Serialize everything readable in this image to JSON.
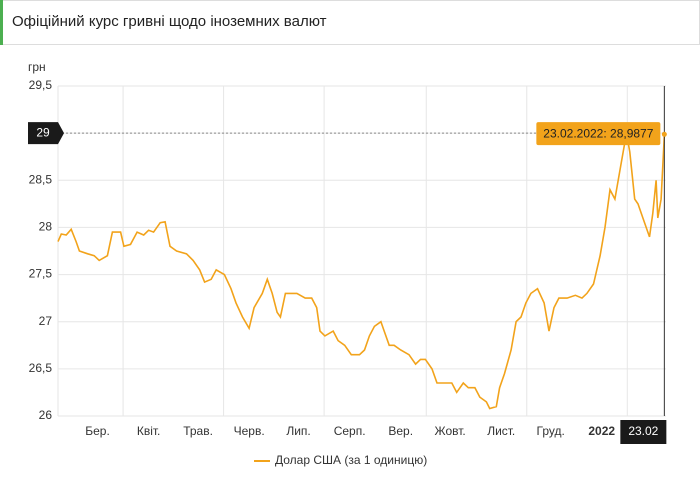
{
  "chart_data": {
    "type": "line",
    "title": "Офіційний курс гривні щодо іноземних валют",
    "y_label": "грн",
    "x": [
      "2021-02-20",
      "2021-02-22",
      "2021-02-25",
      "2021-02-28",
      "2021-03-03",
      "2021-03-05",
      "2021-03-10",
      "2021-03-14",
      "2021-03-17",
      "2021-03-22",
      "2021-03-25",
      "2021-03-30",
      "2021-04-01",
      "2021-04-05",
      "2021-04-09",
      "2021-04-13",
      "2021-04-16",
      "2021-04-19",
      "2021-04-23",
      "2021-04-26",
      "2021-04-29",
      "2021-05-03",
      "2021-05-09",
      "2021-05-13",
      "2021-05-17",
      "2021-05-20",
      "2021-05-24",
      "2021-05-27",
      "2021-06-01",
      "2021-06-05",
      "2021-06-08",
      "2021-06-12",
      "2021-06-16",
      "2021-06-19",
      "2021-06-24",
      "2021-06-27",
      "2021-06-30",
      "2021-07-03",
      "2021-07-05",
      "2021-07-08",
      "2021-07-11",
      "2021-07-15",
      "2021-07-20",
      "2021-07-24",
      "2021-07-27",
      "2021-07-29",
      "2021-08-01",
      "2021-08-06",
      "2021-08-09",
      "2021-08-13",
      "2021-08-17",
      "2021-08-22",
      "2021-08-25",
      "2021-08-28",
      "2021-08-31",
      "2021-09-04",
      "2021-09-06",
      "2021-09-09",
      "2021-09-12",
      "2021-09-16",
      "2021-09-21",
      "2021-09-25",
      "2021-09-28",
      "2021-10-01",
      "2021-10-05",
      "2021-10-08",
      "2021-10-12",
      "2021-10-17",
      "2021-10-20",
      "2021-10-24",
      "2021-10-27",
      "2021-10-31",
      "2021-11-03",
      "2021-11-07",
      "2021-11-09",
      "2021-11-13",
      "2021-11-15",
      "2021-11-18",
      "2021-11-22",
      "2021-11-25",
      "2021-11-28",
      "2021-12-01",
      "2021-12-04",
      "2021-12-08",
      "2021-12-12",
      "2021-12-15",
      "2021-12-18",
      "2021-12-21",
      "2021-12-26",
      "2021-12-31",
      "2022-01-04",
      "2022-01-07",
      "2022-01-11",
      "2022-01-15",
      "2022-01-18",
      "2022-01-21",
      "2022-01-24",
      "2022-01-28",
      "2022-01-31",
      "2022-02-02",
      "2022-02-05",
      "2022-02-07",
      "2022-02-10",
      "2022-02-14",
      "2022-02-16",
      "2022-02-18",
      "2022-02-19",
      "2022-02-21",
      "2022-02-23"
    ],
    "series": [
      {
        "name": "Долар США (за 1 одиницю)",
        "color": "#f2a31b",
        "values": [
          27.85,
          27.93,
          27.92,
          27.98,
          27.85,
          27.75,
          27.72,
          27.7,
          27.65,
          27.7,
          27.95,
          27.95,
          27.8,
          27.82,
          27.95,
          27.92,
          27.97,
          27.95,
          28.05,
          28.06,
          27.8,
          27.75,
          27.72,
          27.65,
          27.55,
          27.42,
          27.45,
          27.55,
          27.5,
          27.35,
          27.2,
          27.05,
          26.93,
          27.15,
          27.3,
          27.45,
          27.3,
          27.1,
          27.05,
          27.3,
          27.3,
          27.3,
          27.25,
          27.25,
          27.15,
          26.9,
          26.85,
          26.9,
          26.8,
          26.75,
          26.65,
          26.65,
          26.7,
          26.85,
          26.95,
          27.0,
          26.9,
          26.75,
          26.75,
          26.7,
          26.65,
          26.55,
          26.6,
          26.6,
          26.5,
          26.35,
          26.35,
          26.35,
          26.25,
          26.35,
          26.3,
          26.3,
          26.2,
          26.15,
          26.08,
          26.1,
          26.3,
          26.45,
          26.7,
          27.0,
          27.05,
          27.2,
          27.3,
          27.35,
          27.2,
          26.9,
          27.15,
          27.25,
          27.25,
          27.28,
          27.25,
          27.3,
          27.4,
          27.7,
          28.0,
          28.4,
          28.3,
          28.7,
          29.0,
          28.8,
          28.3,
          28.25,
          28.1,
          27.9,
          28.15,
          28.5,
          28.1,
          28.3,
          28.9877
        ]
      }
    ],
    "xlim": [
      "2021-02-20",
      "2022-02-24"
    ],
    "xticks": [
      {
        "value": "2021-03-16",
        "label": "Бер."
      },
      {
        "value": "2021-04-16",
        "label": "Квіт."
      },
      {
        "value": "2021-05-16",
        "label": "Трав."
      },
      {
        "value": "2021-06-16",
        "label": "Черв."
      },
      {
        "value": "2021-07-16",
        "label": "Лип."
      },
      {
        "value": "2021-08-16",
        "label": "Серп."
      },
      {
        "value": "2021-09-16",
        "label": "Вер."
      },
      {
        "value": "2021-10-16",
        "label": "Жовт."
      },
      {
        "value": "2021-11-16",
        "label": "Лист."
      },
      {
        "value": "2021-12-16",
        "label": "Груд."
      },
      {
        "value": "2022-01-16",
        "label": "2022"
      }
    ],
    "ylim": [
      26,
      29.5
    ],
    "yticks": [
      26,
      {
        "value": 26.5,
        "label": "26,5"
      },
      27,
      {
        "value": 27.5,
        "label": "27,5"
      },
      28,
      {
        "value": 28.5,
        "label": "28,5"
      },
      29,
      {
        "value": 29.5,
        "label": "29,5"
      }
    ],
    "grid": true,
    "crosshair": {
      "x": "2022-02-23",
      "x_label": "23.02",
      "y": 29,
      "tooltip": "23.02.2022: 28,9877"
    }
  }
}
